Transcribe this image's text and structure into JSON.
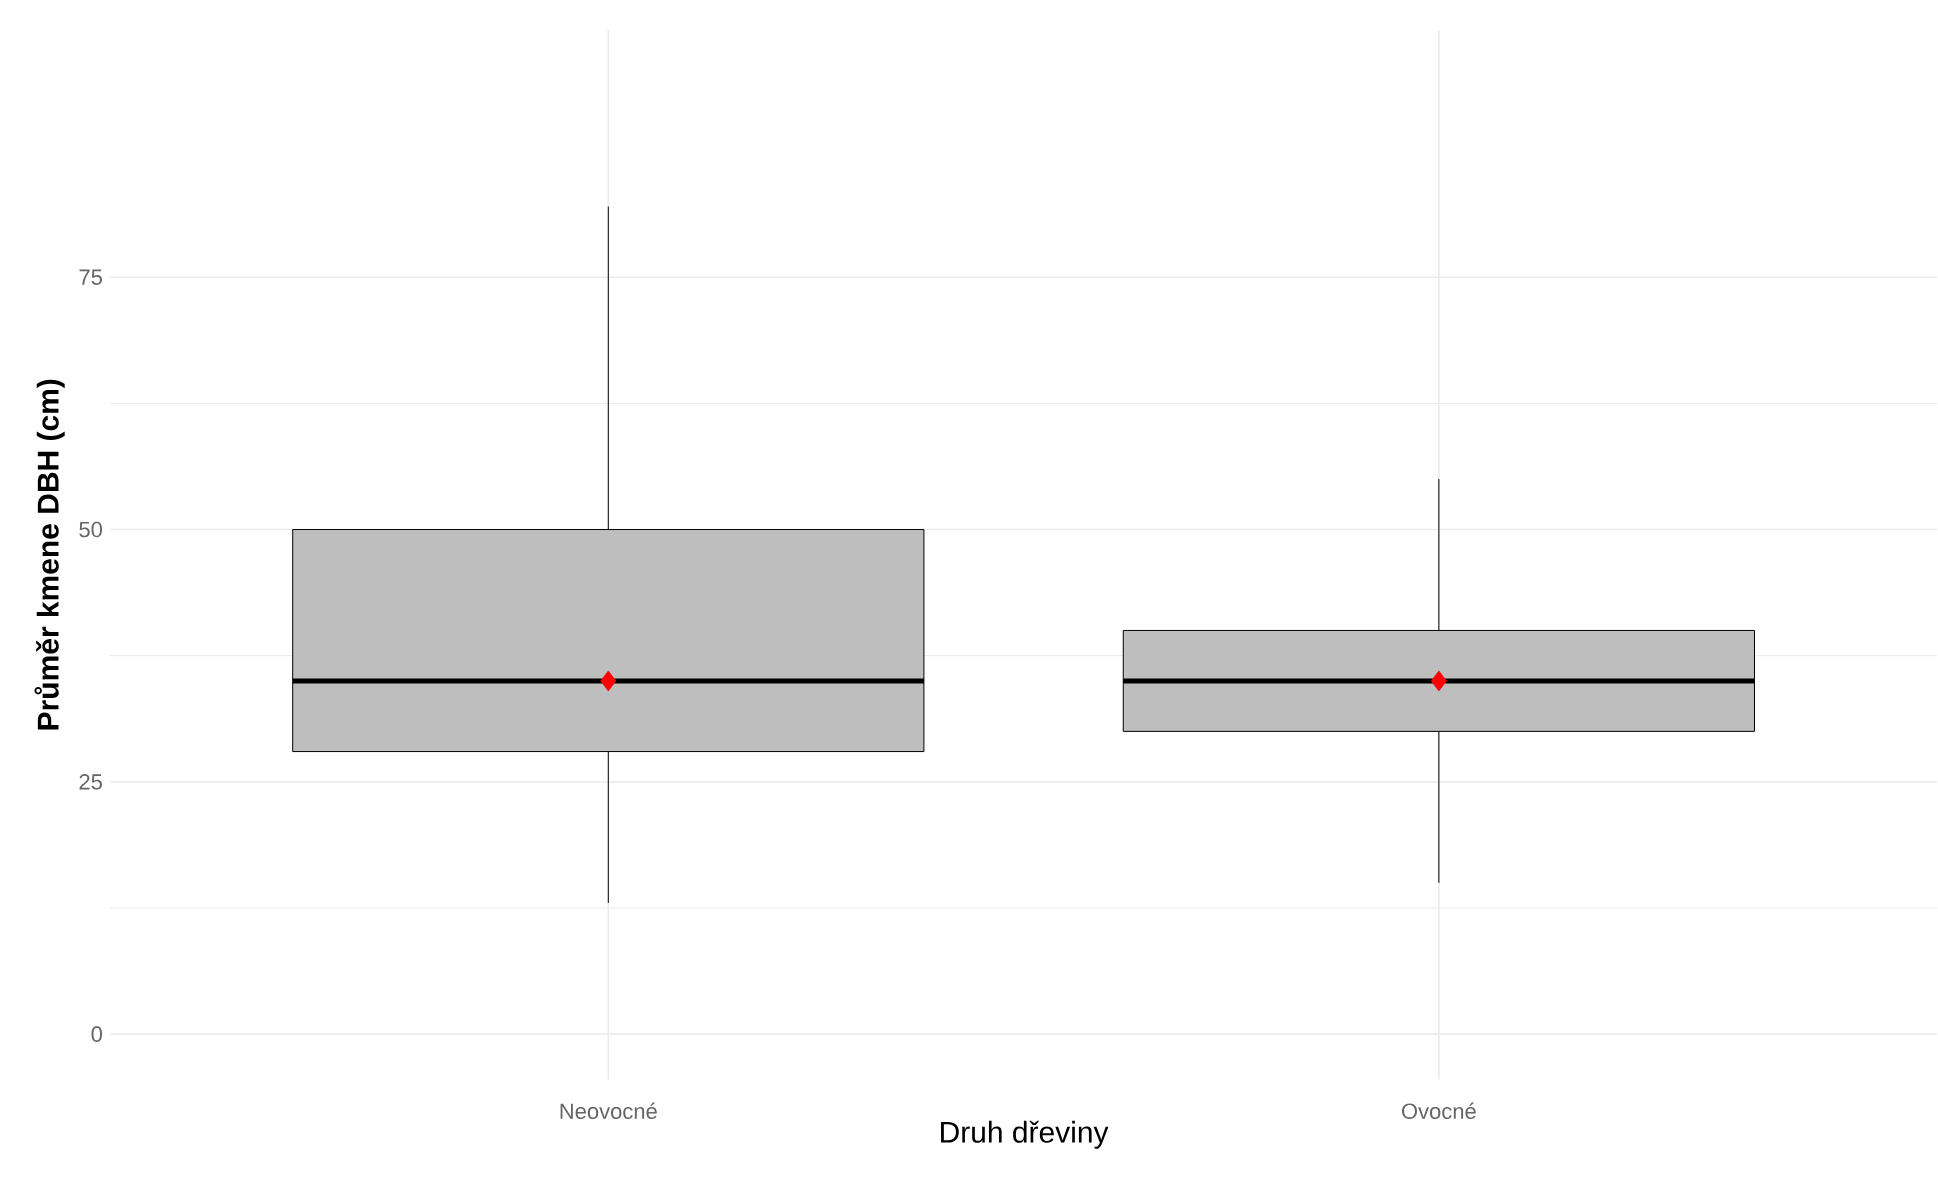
{
  "chart_data": {
    "type": "box",
    "xlabel": "Druh dřeviny",
    "ylabel": "Průměr kmene DBH (cm)",
    "categories": [
      "Neovocné",
      "Ovocné"
    ],
    "boxes": [
      {
        "low": 13,
        "q1": 28,
        "median": 35,
        "q3": 50,
        "high": 82
      },
      {
        "low": 15,
        "q1": 30,
        "median": 35,
        "q3": 40,
        "high": 55
      }
    ],
    "color": "#bebebe",
    "series": [
      {
        "type": "scatter",
        "x": [
          "Neovocné",
          "Ovocné"
        ],
        "values": [
          35,
          35
        ],
        "color": "#ff0000",
        "marker": "diamond"
      }
    ],
    "ylim": [
      -4.5,
      99.5
    ],
    "yticks": [
      0,
      25,
      50,
      75
    ],
    "grid": true
  }
}
